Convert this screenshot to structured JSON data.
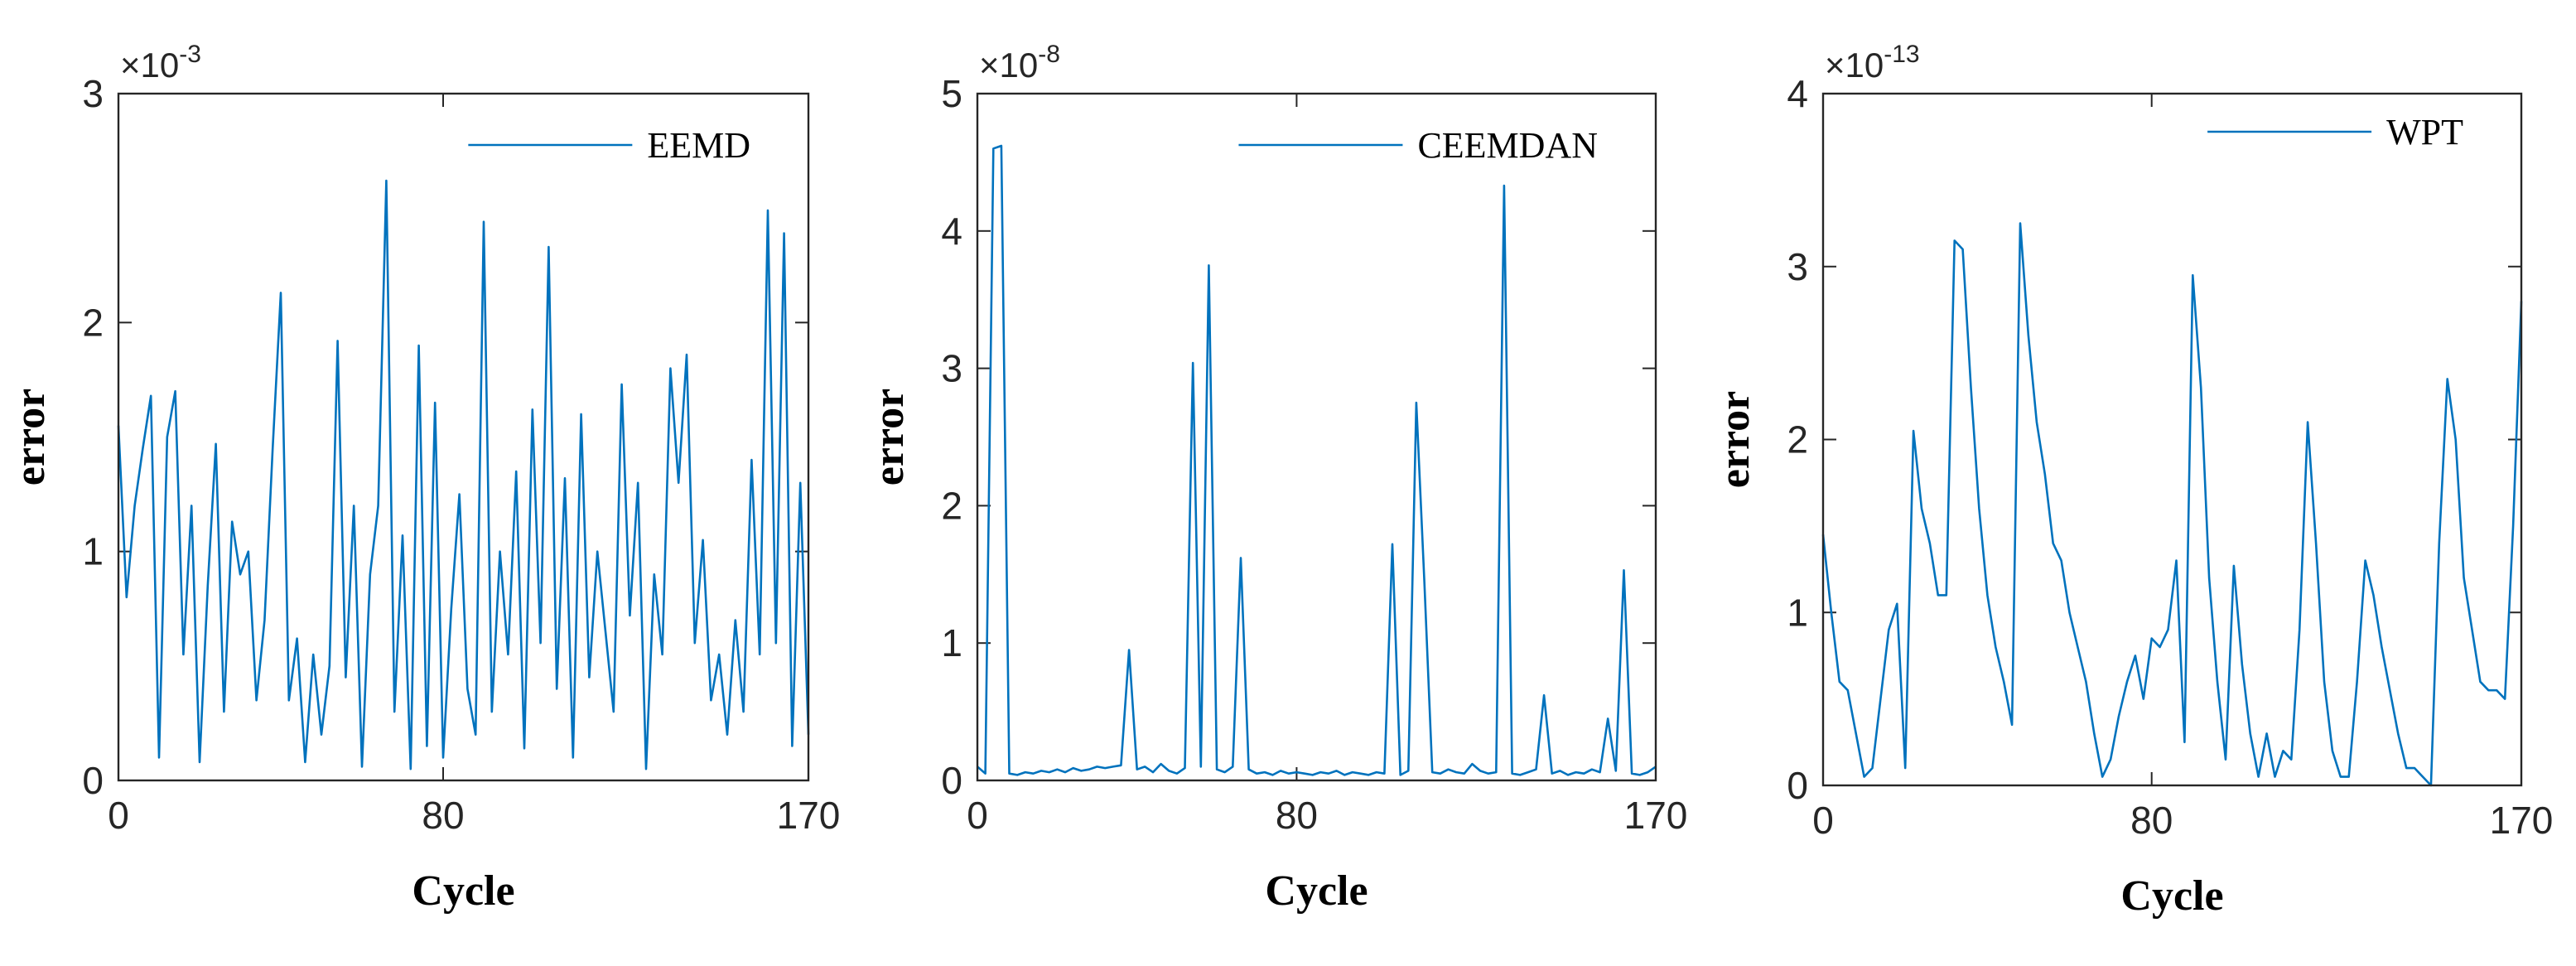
{
  "chart_data": [
    {
      "type": "line",
      "xlabel": "Cycle",
      "ylabel": "error",
      "y_multiplier": {
        "base": "×10",
        "exponent": "-3"
      },
      "xlim": [
        0,
        170
      ],
      "xticks": [
        0,
        80,
        170
      ],
      "ylim": [
        0,
        3
      ],
      "yticks": [
        0,
        1,
        2,
        3
      ],
      "legend": "upper right",
      "x": [
        0,
        2,
        4,
        6,
        8,
        10,
        12,
        14,
        16,
        18,
        20,
        22,
        24,
        26,
        28,
        30,
        32,
        34,
        36,
        38,
        40,
        42,
        44,
        46,
        48,
        50,
        52,
        54,
        56,
        58,
        60,
        62,
        64,
        66,
        68,
        70,
        72,
        74,
        76,
        78,
        80,
        82,
        84,
        86,
        88,
        90,
        92,
        94,
        96,
        98,
        100,
        102,
        104,
        106,
        108,
        110,
        112,
        114,
        116,
        118,
        120,
        122,
        124,
        126,
        128,
        130,
        132,
        134,
        136,
        138,
        140,
        142,
        144,
        146,
        148,
        150,
        152,
        154,
        156,
        158,
        160,
        162,
        164,
        166,
        168,
        170
      ],
      "series": [
        {
          "name": "EEMD",
          "color": "#0072bd",
          "values": [
            1.55,
            0.8,
            1.2,
            1.45,
            1.68,
            0.1,
            1.5,
            1.7,
            0.55,
            1.2,
            0.08,
            0.85,
            1.47,
            0.3,
            1.13,
            0.9,
            1.0,
            0.35,
            0.7,
            1.45,
            2.13,
            0.35,
            0.62,
            0.08,
            0.55,
            0.2,
            0.5,
            1.92,
            0.45,
            1.2,
            0.06,
            0.9,
            1.2,
            2.62,
            0.3,
            1.07,
            0.05,
            1.9,
            0.15,
            1.65,
            0.1,
            0.75,
            1.25,
            0.4,
            0.2,
            2.44,
            0.3,
            1.0,
            0.55,
            1.35,
            0.14,
            1.62,
            0.6,
            2.33,
            0.4,
            1.32,
            0.1,
            1.6,
            0.45,
            1.0,
            0.65,
            0.3,
            1.73,
            0.72,
            1.3,
            0.05,
            0.9,
            0.55,
            1.8,
            1.3,
            1.86,
            0.6,
            1.05,
            0.35,
            0.55,
            0.2,
            0.7,
            0.3,
            1.4,
            0.55,
            2.49,
            0.6,
            2.39,
            0.15,
            1.3,
            0.2
          ]
        }
      ]
    },
    {
      "type": "line",
      "xlabel": "Cycle",
      "ylabel": "error",
      "y_multiplier": {
        "base": "×10",
        "exponent": "-8"
      },
      "xlim": [
        0,
        170
      ],
      "xticks": [
        0,
        80,
        170
      ],
      "ylim": [
        0,
        5
      ],
      "yticks": [
        0,
        1,
        2,
        3,
        4,
        5
      ],
      "legend": "upper right",
      "x": [
        0,
        2,
        4,
        6,
        8,
        10,
        12,
        14,
        16,
        18,
        20,
        22,
        24,
        26,
        28,
        30,
        32,
        34,
        36,
        38,
        40,
        42,
        44,
        46,
        48,
        50,
        52,
        54,
        56,
        58,
        60,
        62,
        64,
        66,
        68,
        70,
        72,
        74,
        76,
        78,
        80,
        82,
        84,
        86,
        88,
        90,
        92,
        94,
        96,
        98,
        100,
        102,
        104,
        106,
        108,
        110,
        112,
        114,
        116,
        118,
        120,
        122,
        124,
        126,
        128,
        130,
        132,
        134,
        136,
        138,
        140,
        142,
        144,
        146,
        148,
        150,
        152,
        154,
        156,
        158,
        160,
        162,
        164,
        166,
        168,
        170
      ],
      "series": [
        {
          "name": "CEEMDAN",
          "color": "#0072bd",
          "values": [
            0.1,
            0.05,
            4.6,
            4.62,
            0.05,
            0.04,
            0.06,
            0.05,
            0.07,
            0.06,
            0.08,
            0.06,
            0.09,
            0.07,
            0.08,
            0.1,
            0.09,
            0.1,
            0.11,
            0.95,
            0.08,
            0.1,
            0.06,
            0.12,
            0.07,
            0.05,
            0.09,
            3.04,
            0.1,
            3.75,
            0.08,
            0.06,
            0.1,
            1.62,
            0.08,
            0.05,
            0.06,
            0.04,
            0.07,
            0.05,
            0.06,
            0.05,
            0.04,
            0.06,
            0.05,
            0.07,
            0.04,
            0.06,
            0.05,
            0.04,
            0.06,
            0.05,
            1.72,
            0.04,
            0.07,
            2.75,
            1.45,
            0.06,
            0.05,
            0.08,
            0.06,
            0.05,
            0.12,
            0.07,
            0.05,
            0.06,
            4.33,
            0.05,
            0.04,
            0.06,
            0.08,
            0.62,
            0.05,
            0.07,
            0.04,
            0.06,
            0.05,
            0.08,
            0.06,
            0.45,
            0.07,
            1.53,
            0.05,
            0.04,
            0.06,
            0.1
          ]
        }
      ]
    },
    {
      "type": "line",
      "xlabel": "Cycle",
      "ylabel": "error",
      "y_multiplier": {
        "base": "×10",
        "exponent": "-13"
      },
      "xlim": [
        0,
        170
      ],
      "xticks": [
        0,
        80,
        170
      ],
      "ylim": [
        0,
        4
      ],
      "yticks": [
        0,
        1,
        2,
        3,
        4
      ],
      "legend": "upper right",
      "x": [
        0,
        2,
        4,
        6,
        8,
        10,
        12,
        14,
        16,
        18,
        20,
        22,
        24,
        26,
        28,
        30,
        32,
        34,
        36,
        38,
        40,
        42,
        44,
        46,
        48,
        50,
        52,
        54,
        56,
        58,
        60,
        62,
        64,
        66,
        68,
        70,
        72,
        74,
        76,
        78,
        80,
        82,
        84,
        86,
        88,
        90,
        92,
        94,
        96,
        98,
        100,
        102,
        104,
        106,
        108,
        110,
        112,
        114,
        116,
        118,
        120,
        122,
        124,
        126,
        128,
        130,
        132,
        134,
        136,
        138,
        140,
        142,
        144,
        146,
        148,
        150,
        152,
        154,
        156,
        158,
        160,
        162,
        164,
        166,
        168,
        170
      ],
      "series": [
        {
          "name": "WPT",
          "color": "#0072bd",
          "values": [
            1.45,
            1.0,
            0.6,
            0.55,
            0.3,
            0.05,
            0.1,
            0.5,
            0.9,
            1.05,
            0.1,
            2.05,
            1.6,
            1.4,
            1.1,
            1.1,
            3.15,
            3.1,
            2.3,
            1.6,
            1.1,
            0.8,
            0.6,
            0.35,
            3.25,
            2.6,
            2.1,
            1.8,
            1.4,
            1.3,
            1.0,
            0.8,
            0.6,
            0.3,
            0.05,
            0.15,
            0.4,
            0.6,
            0.75,
            0.5,
            0.85,
            0.8,
            0.9,
            1.3,
            0.25,
            2.95,
            2.3,
            1.2,
            0.6,
            0.15,
            1.27,
            0.7,
            0.3,
            0.05,
            0.3,
            0.05,
            0.2,
            0.15,
            0.9,
            2.1,
            1.4,
            0.6,
            0.2,
            0.05,
            0.05,
            0.6,
            1.3,
            1.1,
            0.8,
            0.55,
            0.3,
            0.1,
            0.1,
            0.05,
            0.0,
            1.4,
            2.35,
            2.0,
            1.2,
            0.9,
            0.6,
            0.55,
            0.55,
            0.5,
            1.5,
            2.8
          ]
        }
      ]
    }
  ]
}
